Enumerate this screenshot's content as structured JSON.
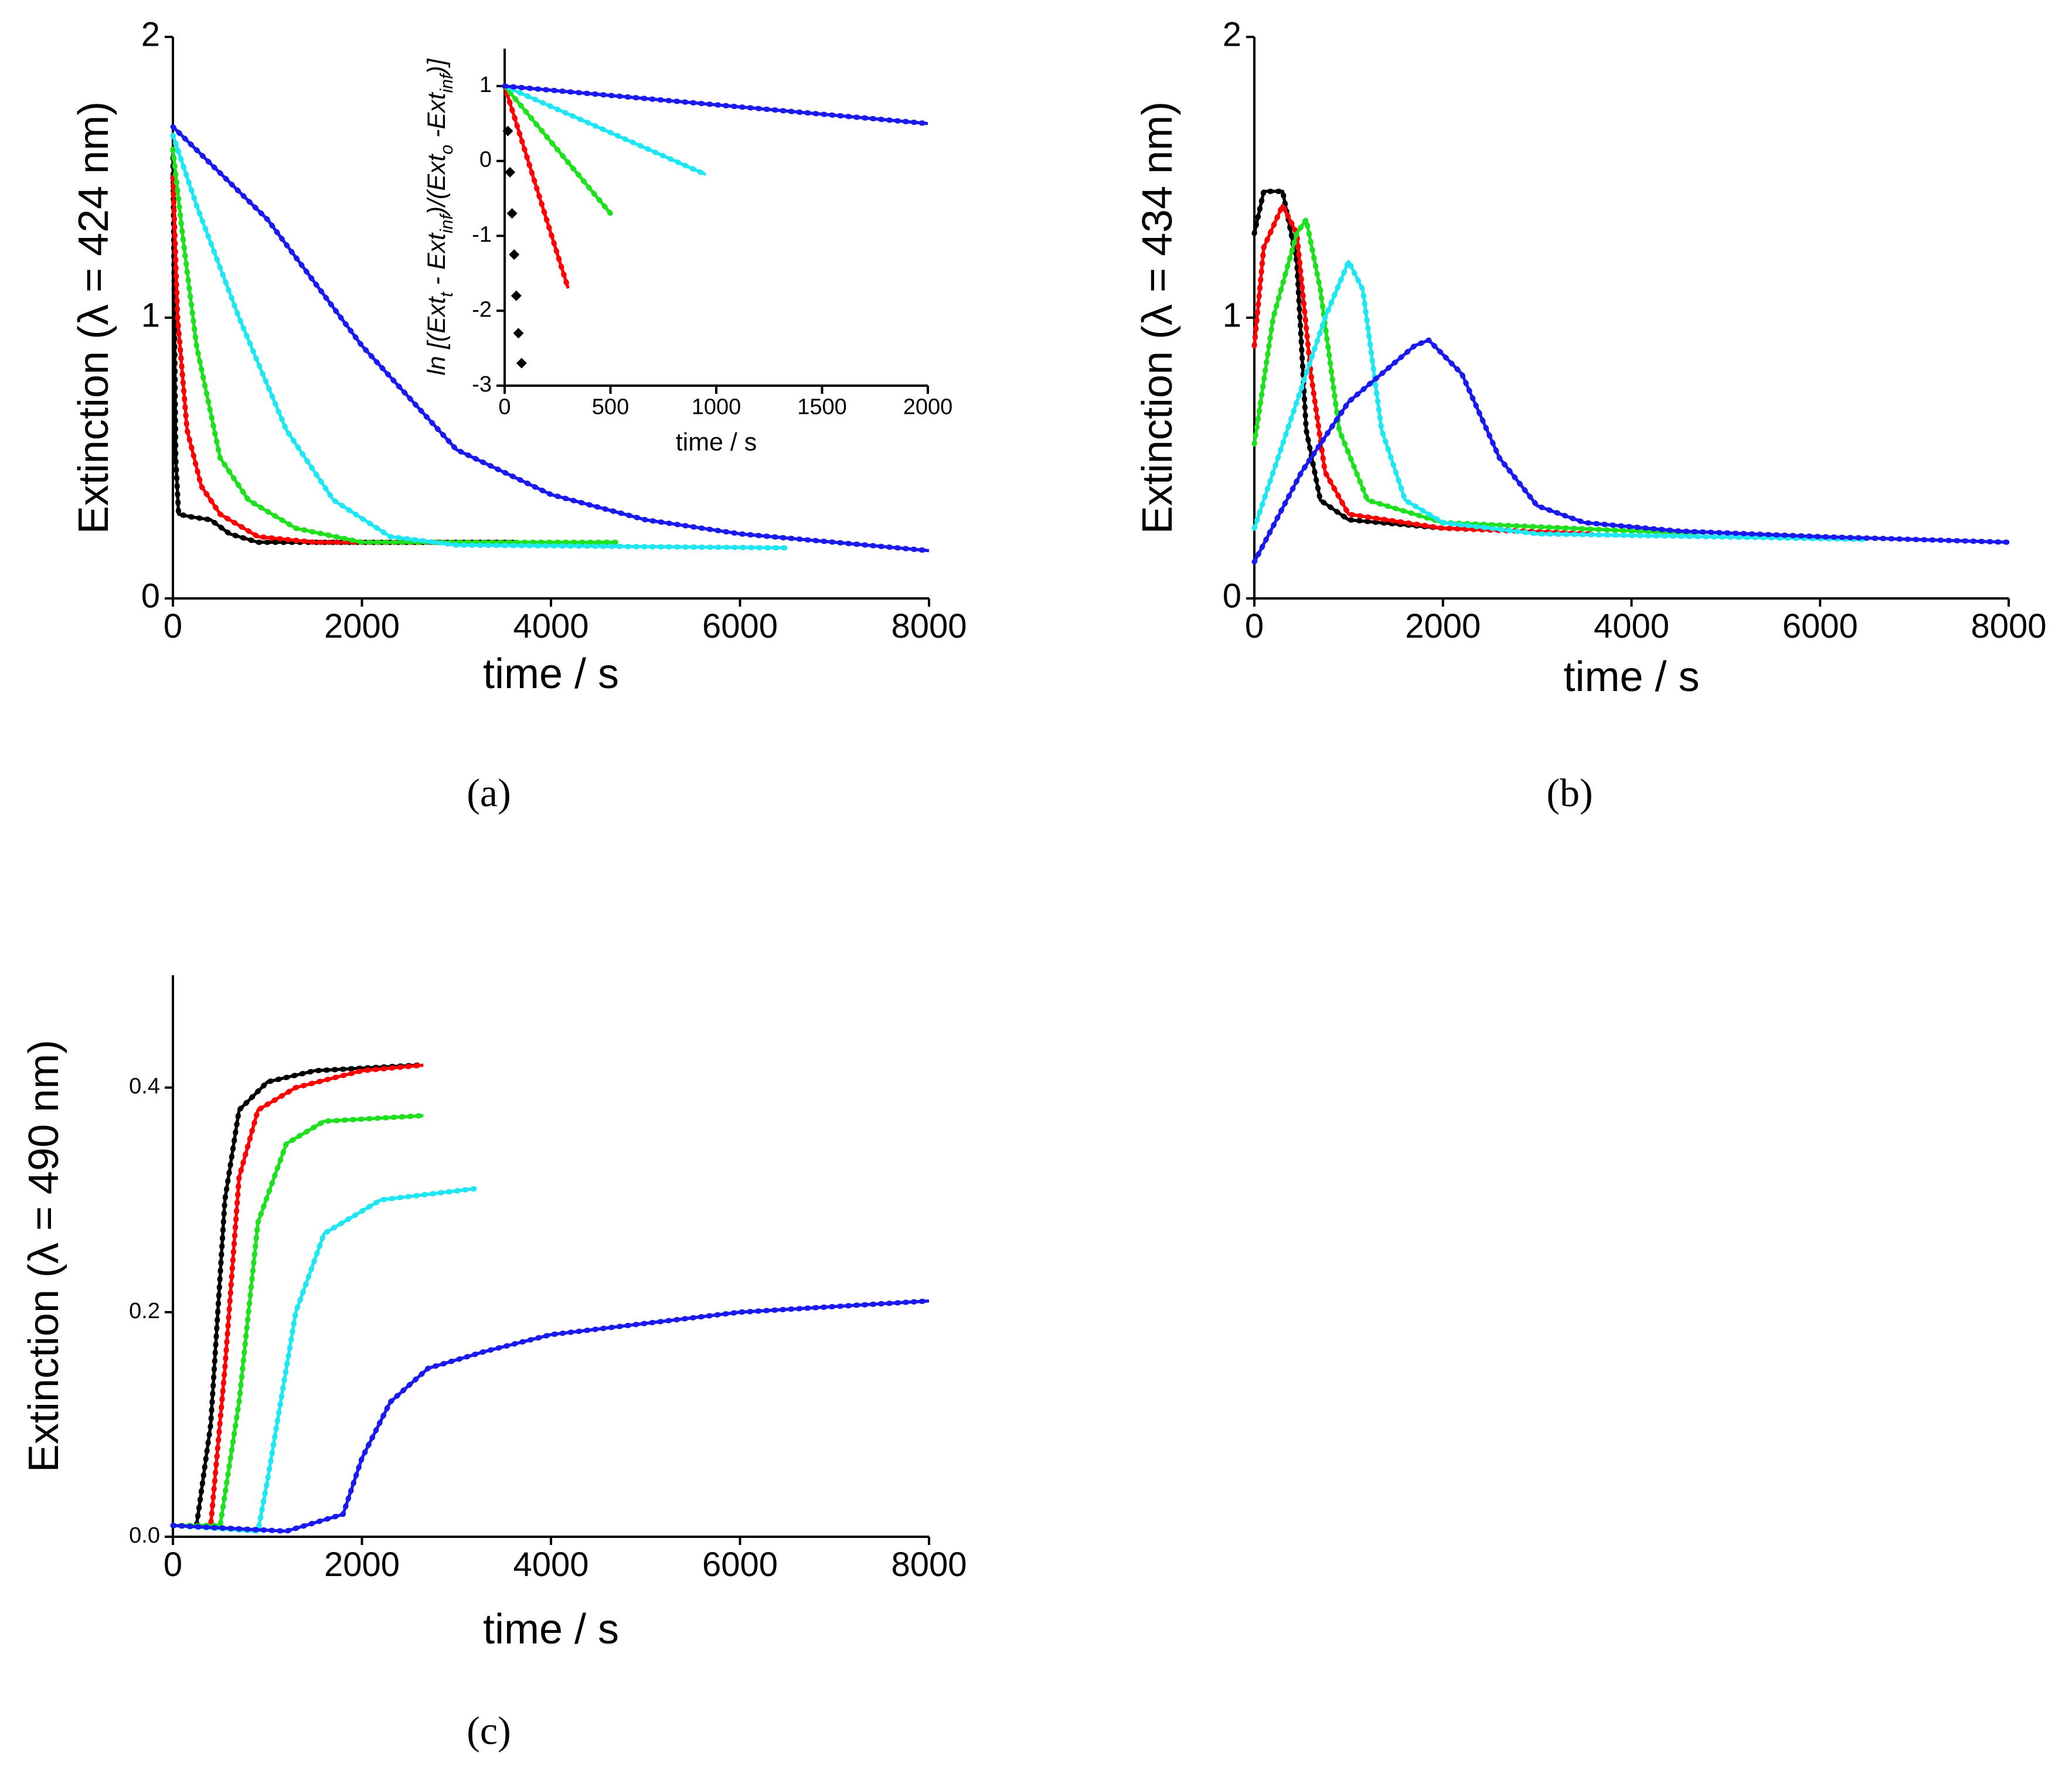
{
  "chart_data": [
    {
      "type": "line",
      "label": "(a)",
      "xlabel": "time / s",
      "ylabel": "Extinction (λ = 424 nm)",
      "xlim": [
        0,
        8000
      ],
      "xticks": [
        0,
        2000,
        4000,
        6000,
        8000
      ],
      "ylim": [
        0,
        2
      ],
      "yticks": [
        0,
        1,
        2
      ],
      "series": [
        {
          "color": "#000000",
          "x": [
            0,
            30,
            60,
            200,
            400,
            600,
            900,
            1500,
            3600
          ],
          "values": [
            1.6,
            0.5,
            0.3,
            0.29,
            0.28,
            0.23,
            0.2,
            0.2,
            0.2
          ]
        },
        {
          "color": "#ff0000",
          "x": [
            0,
            50,
            150,
            300,
            500,
            900,
            1500,
            3600
          ],
          "values": [
            1.5,
            1.0,
            0.6,
            0.4,
            0.3,
            0.22,
            0.2,
            0.2
          ]
        },
        {
          "color": "#1ee01e",
          "x": [
            0,
            100,
            250,
            500,
            800,
            1300,
            2000,
            4700
          ],
          "values": [
            1.6,
            1.3,
            0.9,
            0.5,
            0.35,
            0.25,
            0.2,
            0.2
          ]
        },
        {
          "color": "#1ee6f2",
          "x": [
            0,
            250,
            700,
            1200,
            1700,
            2300,
            3000,
            6500
          ],
          "values": [
            1.65,
            1.4,
            1.0,
            0.6,
            0.35,
            0.22,
            0.19,
            0.18
          ]
        },
        {
          "color": "#1a1aef",
          "x": [
            0,
            1000,
            2000,
            3000,
            4000,
            5000,
            6000,
            8000
          ],
          "values": [
            1.68,
            1.35,
            0.9,
            0.53,
            0.37,
            0.28,
            0.23,
            0.17
          ]
        }
      ]
    },
    {
      "type": "line",
      "label": "(b)",
      "xlabel": "time / s",
      "ylabel": "Extinction (λ = 434 nm)",
      "xlim": [
        0,
        8000
      ],
      "xticks": [
        0,
        2000,
        4000,
        6000,
        8000
      ],
      "ylim": [
        0,
        2
      ],
      "yticks": [
        0,
        1,
        2
      ],
      "series": [
        {
          "color": "#000000",
          "x": [
            0,
            100,
            300,
            450,
            550,
            700,
            1000,
            2000,
            3600
          ],
          "values": [
            1.3,
            1.45,
            1.45,
            1.2,
            0.6,
            0.35,
            0.28,
            0.25,
            0.23
          ]
        },
        {
          "color": "#ff0000",
          "x": [
            0,
            100,
            300,
            450,
            600,
            750,
            1000,
            2000,
            3600
          ],
          "values": [
            0.9,
            1.25,
            1.4,
            1.3,
            0.8,
            0.45,
            0.3,
            0.25,
            0.23
          ]
        },
        {
          "color": "#1ee01e",
          "x": [
            0,
            200,
            450,
            550,
            700,
            900,
            1200,
            2000,
            4700
          ],
          "values": [
            0.55,
            1.0,
            1.3,
            1.35,
            1.1,
            0.6,
            0.35,
            0.27,
            0.23
          ]
        },
        {
          "color": "#1ee6f2",
          "x": [
            0,
            400,
            750,
            1000,
            1150,
            1350,
            1600,
            2000,
            3000,
            6500
          ],
          "values": [
            0.25,
            0.65,
            1.0,
            1.2,
            1.1,
            0.6,
            0.35,
            0.27,
            0.23,
            0.21
          ]
        },
        {
          "color": "#1a1aef",
          "x": [
            0,
            500,
            1000,
            1700,
            1850,
            2200,
            2600,
            3000,
            3500,
            4500,
            6000,
            8000
          ],
          "values": [
            0.13,
            0.45,
            0.7,
            0.9,
            0.92,
            0.8,
            0.5,
            0.33,
            0.27,
            0.24,
            0.22,
            0.2
          ]
        }
      ]
    },
    {
      "type": "line",
      "label": "(c)",
      "xlabel": "time / s",
      "ylabel": "Extinction (λ = 490 nm)",
      "xlim": [
        0,
        8000
      ],
      "xticks": [
        0,
        2000,
        4000,
        6000,
        8000
      ],
      "ylim": [
        0,
        0.5
      ],
      "yticks": [
        {
          "value": 0,
          "label": "0.0"
        },
        0.2,
        0.4
      ],
      "series": [
        {
          "color": "#000000",
          "x": [
            0,
            250,
            400,
            550,
            700,
            1000,
            1500,
            2600
          ],
          "values": [
            0.01,
            0.01,
            0.1,
            0.3,
            0.38,
            0.405,
            0.415,
            0.42
          ]
        },
        {
          "color": "#ff0000",
          "x": [
            0,
            400,
            550,
            700,
            900,
            1300,
            2000,
            2650
          ],
          "values": [
            0.01,
            0.01,
            0.15,
            0.32,
            0.38,
            0.4,
            0.415,
            0.42
          ]
        },
        {
          "color": "#1ee01e",
          "x": [
            0,
            500,
            700,
            900,
            1200,
            1600,
            2650
          ],
          "values": [
            0.01,
            0.01,
            0.12,
            0.28,
            0.35,
            0.37,
            0.375
          ]
        },
        {
          "color": "#1ee6f2",
          "x": [
            0,
            900,
            1000,
            1300,
            1600,
            2200,
            3200
          ],
          "values": [
            0.01,
            0.005,
            0.05,
            0.2,
            0.27,
            0.3,
            0.31
          ]
        },
        {
          "color": "#1a1aef",
          "x": [
            0,
            1200,
            1800,
            2000,
            2300,
            2700,
            3300,
            4000,
            5000,
            6000,
            8000
          ],
          "values": [
            0.01,
            0.005,
            0.02,
            0.07,
            0.12,
            0.15,
            0.165,
            0.18,
            0.19,
            0.2,
            0.21
          ]
        }
      ]
    },
    {
      "type": "line",
      "xlabel": "time / s",
      "ylabel": [
        {
          "text": "ln [(Ext"
        },
        {
          "text": "t",
          "sub": true
        },
        {
          "text": " - Ext"
        },
        {
          "text": "inf",
          "sub": true
        },
        {
          "text": ")/(Ext"
        },
        {
          "text": "o",
          "sub": true
        },
        {
          "text": " -Ext"
        },
        {
          "text": "inf",
          "sub": true
        },
        {
          "text": ")]"
        }
      ],
      "xlim": [
        0,
        2000
      ],
      "xticks": [
        0,
        500,
        1000,
        1500,
        2000
      ],
      "ylim": [
        -3,
        1.5
      ],
      "yticks": [
        -3,
        -2,
        -1,
        0,
        1
      ],
      "series": [
        {
          "color": "#000000",
          "marker": "diamond",
          "x": [
            15,
            25,
            35,
            45,
            55,
            65,
            80
          ],
          "values": [
            0.4,
            -0.15,
            -0.7,
            -1.25,
            -1.8,
            -2.3,
            -2.7
          ]
        },
        {
          "color": "#ff0000",
          "x": [
            0,
            300
          ],
          "values": [
            1,
            -1.7
          ]
        },
        {
          "color": "#1ee01e",
          "x": [
            0,
            500
          ],
          "values": [
            1,
            -0.7
          ]
        },
        {
          "color": "#1ee6f2",
          "x": [
            0,
            950
          ],
          "values": [
            1,
            -0.18
          ]
        },
        {
          "color": "#1a1aef",
          "x": [
            0,
            2000
          ],
          "values": [
            1,
            0.5
          ]
        }
      ]
    }
  ]
}
